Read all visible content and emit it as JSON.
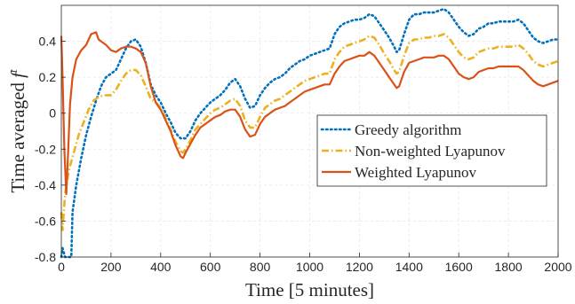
{
  "chart_data": {
    "type": "line",
    "title": "",
    "xlabel": "Time [5 minutes]",
    "ylabel_prefix": "Time averaged ",
    "ylabel_symbol": "f",
    "ylabel_superscript": "t",
    "xlim": [
      0,
      2000
    ],
    "ylim": [
      -0.8,
      0.6
    ],
    "xticks": [
      0,
      200,
      400,
      600,
      800,
      1000,
      1200,
      1400,
      1600,
      1800,
      2000
    ],
    "yticks": [
      -0.8,
      -0.6,
      -0.4,
      -0.2,
      0,
      0.2,
      0.4
    ],
    "ytick_labels": [
      "-0.8",
      "-0.6",
      "-0.4",
      "-0.2",
      "0",
      "0.2",
      "0.4"
    ],
    "grid": true,
    "legend_position": "center-right",
    "series": [
      {
        "name": "Greedy algorithm",
        "color": "#0072BD",
        "style": "dotted",
        "points": [
          [
            0,
            -0.8
          ],
          [
            5,
            -0.75
          ],
          [
            15,
            -0.8
          ],
          [
            40,
            -0.8
          ],
          [
            45,
            -0.55
          ],
          [
            60,
            -0.4
          ],
          [
            80,
            -0.25
          ],
          [
            100,
            -0.12
          ],
          [
            120,
            -0.02
          ],
          [
            140,
            0.07
          ],
          [
            160,
            0.15
          ],
          [
            180,
            0.2
          ],
          [
            200,
            0.22
          ],
          [
            220,
            0.24
          ],
          [
            240,
            0.3
          ],
          [
            260,
            0.36
          ],
          [
            280,
            0.4
          ],
          [
            300,
            0.41
          ],
          [
            320,
            0.37
          ],
          [
            340,
            0.28
          ],
          [
            360,
            0.16
          ],
          [
            380,
            0.1
          ],
          [
            400,
            0.06
          ],
          [
            420,
            0.0
          ],
          [
            440,
            -0.05
          ],
          [
            460,
            -0.11
          ],
          [
            480,
            -0.14
          ],
          [
            500,
            -0.14
          ],
          [
            520,
            -0.1
          ],
          [
            540,
            -0.04
          ],
          [
            560,
            0.0
          ],
          [
            580,
            0.03
          ],
          [
            600,
            0.06
          ],
          [
            620,
            0.08
          ],
          [
            640,
            0.1
          ],
          [
            660,
            0.13
          ],
          [
            680,
            0.17
          ],
          [
            700,
            0.19
          ],
          [
            720,
            0.15
          ],
          [
            740,
            0.08
          ],
          [
            760,
            0.03
          ],
          [
            780,
            0.04
          ],
          [
            800,
            0.1
          ],
          [
            820,
            0.14
          ],
          [
            840,
            0.17
          ],
          [
            860,
            0.19
          ],
          [
            880,
            0.2
          ],
          [
            900,
            0.22
          ],
          [
            920,
            0.25
          ],
          [
            940,
            0.27
          ],
          [
            960,
            0.29
          ],
          [
            980,
            0.3
          ],
          [
            1000,
            0.32
          ],
          [
            1020,
            0.33
          ],
          [
            1040,
            0.34
          ],
          [
            1060,
            0.35
          ],
          [
            1080,
            0.36
          ],
          [
            1100,
            0.44
          ],
          [
            1120,
            0.48
          ],
          [
            1140,
            0.5
          ],
          [
            1160,
            0.51
          ],
          [
            1180,
            0.52
          ],
          [
            1200,
            0.52
          ],
          [
            1220,
            0.53
          ],
          [
            1240,
            0.55
          ],
          [
            1260,
            0.54
          ],
          [
            1280,
            0.5
          ],
          [
            1300,
            0.46
          ],
          [
            1320,
            0.42
          ],
          [
            1340,
            0.37
          ],
          [
            1350,
            0.34
          ],
          [
            1360,
            0.35
          ],
          [
            1380,
            0.44
          ],
          [
            1400,
            0.52
          ],
          [
            1420,
            0.55
          ],
          [
            1440,
            0.55
          ],
          [
            1460,
            0.56
          ],
          [
            1480,
            0.56
          ],
          [
            1500,
            0.56
          ],
          [
            1520,
            0.57
          ],
          [
            1540,
            0.58
          ],
          [
            1560,
            0.56
          ],
          [
            1580,
            0.52
          ],
          [
            1600,
            0.48
          ],
          [
            1620,
            0.45
          ],
          [
            1640,
            0.43
          ],
          [
            1660,
            0.44
          ],
          [
            1680,
            0.47
          ],
          [
            1700,
            0.48
          ],
          [
            1720,
            0.5
          ],
          [
            1740,
            0.5
          ],
          [
            1760,
            0.51
          ],
          [
            1780,
            0.51
          ],
          [
            1800,
            0.51
          ],
          [
            1820,
            0.51
          ],
          [
            1840,
            0.52
          ],
          [
            1860,
            0.5
          ],
          [
            1880,
            0.46
          ],
          [
            1900,
            0.42
          ],
          [
            1920,
            0.4
          ],
          [
            1940,
            0.39
          ],
          [
            1960,
            0.4
          ],
          [
            1980,
            0.41
          ],
          [
            2000,
            0.41
          ]
        ]
      },
      {
        "name": "Non-weighted Lyapunov",
        "color": "#EDB120",
        "style": "dashdot",
        "points": [
          [
            0,
            -0.55
          ],
          [
            5,
            -0.65
          ],
          [
            15,
            -0.45
          ],
          [
            30,
            -0.32
          ],
          [
            50,
            -0.22
          ],
          [
            70,
            -0.12
          ],
          [
            90,
            -0.05
          ],
          [
            110,
            0.02
          ],
          [
            130,
            0.07
          ],
          [
            150,
            0.09
          ],
          [
            170,
            0.1
          ],
          [
            200,
            0.1
          ],
          [
            220,
            0.13
          ],
          [
            240,
            0.18
          ],
          [
            260,
            0.22
          ],
          [
            280,
            0.24
          ],
          [
            300,
            0.24
          ],
          [
            320,
            0.21
          ],
          [
            340,
            0.15
          ],
          [
            360,
            0.08
          ],
          [
            380,
            0.06
          ],
          [
            400,
            0.03
          ],
          [
            420,
            -0.03
          ],
          [
            440,
            -0.09
          ],
          [
            460,
            -0.16
          ],
          [
            480,
            -0.21
          ],
          [
            490,
            -0.22
          ],
          [
            500,
            -0.2
          ],
          [
            520,
            -0.15
          ],
          [
            540,
            -0.09
          ],
          [
            560,
            -0.06
          ],
          [
            580,
            -0.03
          ],
          [
            600,
            0.0
          ],
          [
            620,
            0.02
          ],
          [
            640,
            0.03
          ],
          [
            660,
            0.05
          ],
          [
            680,
            0.07
          ],
          [
            700,
            0.08
          ],
          [
            720,
            0.04
          ],
          [
            740,
            -0.04
          ],
          [
            760,
            -0.08
          ],
          [
            780,
            -0.08
          ],
          [
            800,
            -0.02
          ],
          [
            820,
            0.03
          ],
          [
            840,
            0.05
          ],
          [
            860,
            0.07
          ],
          [
            880,
            0.08
          ],
          [
            900,
            0.1
          ],
          [
            920,
            0.12
          ],
          [
            940,
            0.14
          ],
          [
            960,
            0.16
          ],
          [
            980,
            0.18
          ],
          [
            1000,
            0.19
          ],
          [
            1020,
            0.2
          ],
          [
            1040,
            0.21
          ],
          [
            1060,
            0.22
          ],
          [
            1080,
            0.22
          ],
          [
            1100,
            0.3
          ],
          [
            1120,
            0.34
          ],
          [
            1140,
            0.37
          ],
          [
            1160,
            0.38
          ],
          [
            1180,
            0.39
          ],
          [
            1200,
            0.4
          ],
          [
            1220,
            0.41
          ],
          [
            1240,
            0.43
          ],
          [
            1260,
            0.42
          ],
          [
            1280,
            0.38
          ],
          [
            1300,
            0.33
          ],
          [
            1320,
            0.29
          ],
          [
            1340,
            0.24
          ],
          [
            1350,
            0.22
          ],
          [
            1360,
            0.23
          ],
          [
            1380,
            0.32
          ],
          [
            1400,
            0.39
          ],
          [
            1420,
            0.41
          ],
          [
            1440,
            0.41
          ],
          [
            1460,
            0.42
          ],
          [
            1480,
            0.42
          ],
          [
            1500,
            0.43
          ],
          [
            1520,
            0.43
          ],
          [
            1540,
            0.44
          ],
          [
            1560,
            0.42
          ],
          [
            1580,
            0.38
          ],
          [
            1600,
            0.34
          ],
          [
            1620,
            0.31
          ],
          [
            1640,
            0.3
          ],
          [
            1660,
            0.31
          ],
          [
            1680,
            0.34
          ],
          [
            1700,
            0.35
          ],
          [
            1720,
            0.36
          ],
          [
            1740,
            0.36
          ],
          [
            1760,
            0.37
          ],
          [
            1780,
            0.37
          ],
          [
            1800,
            0.37
          ],
          [
            1820,
            0.37
          ],
          [
            1840,
            0.38
          ],
          [
            1860,
            0.36
          ],
          [
            1880,
            0.33
          ],
          [
            1900,
            0.29
          ],
          [
            1920,
            0.27
          ],
          [
            1940,
            0.26
          ],
          [
            1960,
            0.27
          ],
          [
            1980,
            0.28
          ],
          [
            2000,
            0.29
          ]
        ]
      },
      {
        "name": "Weighted Lyapunov",
        "color": "#D95319",
        "style": "solid",
        "points": [
          [
            0,
            0.43
          ],
          [
            5,
            0.2
          ],
          [
            12,
            -0.2
          ],
          [
            20,
            -0.45
          ],
          [
            28,
            -0.2
          ],
          [
            35,
            0.05
          ],
          [
            45,
            0.2
          ],
          [
            60,
            0.3
          ],
          [
            80,
            0.35
          ],
          [
            100,
            0.38
          ],
          [
            120,
            0.44
          ],
          [
            140,
            0.45
          ],
          [
            150,
            0.41
          ],
          [
            160,
            0.4
          ],
          [
            180,
            0.38
          ],
          [
            200,
            0.35
          ],
          [
            220,
            0.34
          ],
          [
            240,
            0.36
          ],
          [
            260,
            0.37
          ],
          [
            280,
            0.37
          ],
          [
            300,
            0.36
          ],
          [
            320,
            0.34
          ],
          [
            340,
            0.28
          ],
          [
            360,
            0.15
          ],
          [
            380,
            0.06
          ],
          [
            400,
            0.02
          ],
          [
            420,
            -0.04
          ],
          [
            440,
            -0.1
          ],
          [
            460,
            -0.18
          ],
          [
            480,
            -0.24
          ],
          [
            490,
            -0.25
          ],
          [
            500,
            -0.22
          ],
          [
            520,
            -0.17
          ],
          [
            540,
            -0.12
          ],
          [
            560,
            -0.08
          ],
          [
            580,
            -0.06
          ],
          [
            600,
            -0.04
          ],
          [
            620,
            -0.02
          ],
          [
            640,
            -0.01
          ],
          [
            660,
            0.01
          ],
          [
            680,
            0.02
          ],
          [
            700,
            0.02
          ],
          [
            720,
            -0.02
          ],
          [
            740,
            -0.09
          ],
          [
            760,
            -0.13
          ],
          [
            780,
            -0.12
          ],
          [
            800,
            -0.06
          ],
          [
            820,
            -0.02
          ],
          [
            840,
            0.0
          ],
          [
            860,
            0.02
          ],
          [
            880,
            0.03
          ],
          [
            900,
            0.04
          ],
          [
            920,
            0.06
          ],
          [
            940,
            0.08
          ],
          [
            960,
            0.1
          ],
          [
            980,
            0.12
          ],
          [
            1000,
            0.13
          ],
          [
            1020,
            0.14
          ],
          [
            1040,
            0.15
          ],
          [
            1060,
            0.16
          ],
          [
            1080,
            0.16
          ],
          [
            1100,
            0.22
          ],
          [
            1120,
            0.26
          ],
          [
            1140,
            0.29
          ],
          [
            1160,
            0.3
          ],
          [
            1180,
            0.31
          ],
          [
            1200,
            0.32
          ],
          [
            1220,
            0.32
          ],
          [
            1240,
            0.34
          ],
          [
            1260,
            0.32
          ],
          [
            1280,
            0.28
          ],
          [
            1300,
            0.24
          ],
          [
            1320,
            0.2
          ],
          [
            1340,
            0.16
          ],
          [
            1350,
            0.14
          ],
          [
            1360,
            0.15
          ],
          [
            1380,
            0.23
          ],
          [
            1400,
            0.28
          ],
          [
            1420,
            0.29
          ],
          [
            1440,
            0.3
          ],
          [
            1460,
            0.31
          ],
          [
            1480,
            0.31
          ],
          [
            1500,
            0.31
          ],
          [
            1520,
            0.32
          ],
          [
            1540,
            0.32
          ],
          [
            1560,
            0.3
          ],
          [
            1580,
            0.26
          ],
          [
            1600,
            0.22
          ],
          [
            1620,
            0.2
          ],
          [
            1640,
            0.19
          ],
          [
            1660,
            0.2
          ],
          [
            1680,
            0.23
          ],
          [
            1700,
            0.24
          ],
          [
            1720,
            0.25
          ],
          [
            1740,
            0.25
          ],
          [
            1760,
            0.26
          ],
          [
            1780,
            0.26
          ],
          [
            1800,
            0.26
          ],
          [
            1820,
            0.26
          ],
          [
            1840,
            0.26
          ],
          [
            1860,
            0.24
          ],
          [
            1880,
            0.21
          ],
          [
            1900,
            0.18
          ],
          [
            1920,
            0.16
          ],
          [
            1940,
            0.15
          ],
          [
            1960,
            0.16
          ],
          [
            1980,
            0.17
          ],
          [
            2000,
            0.18
          ]
        ]
      }
    ]
  }
}
